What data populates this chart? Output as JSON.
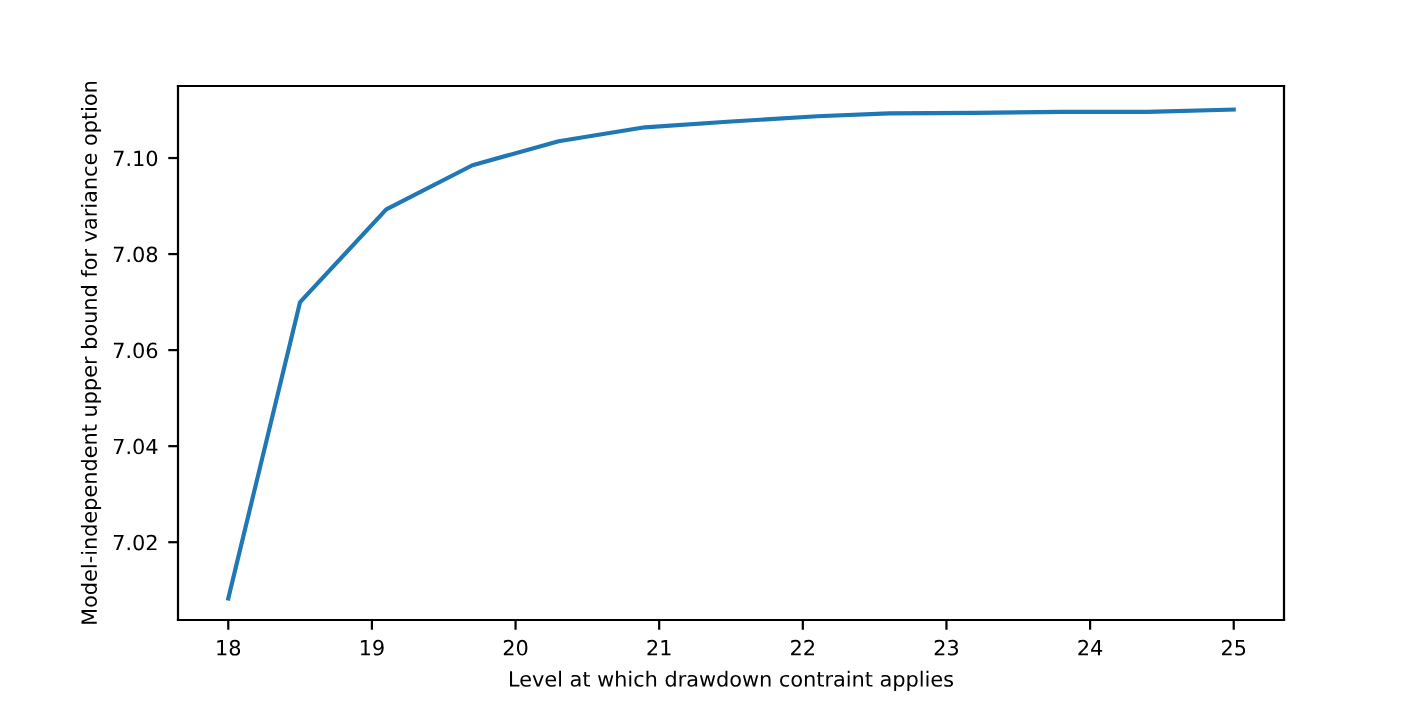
{
  "chart_data": {
    "type": "line",
    "xlabel": "Level at which drawdown contraint applies",
    "ylabel": "Model-independent upper bound for variance option",
    "x": [
      18,
      18.5,
      19.1,
      19.7,
      20.3,
      20.9,
      21.5,
      22.1,
      22.6,
      23.2,
      23.8,
      24.4,
      25
    ],
    "series": [
      {
        "color": "#1f77b4",
        "values": [
          7.0083,
          7.07,
          7.0893,
          7.0985,
          7.1035,
          7.1064,
          7.1076,
          7.1087,
          7.1093,
          7.1094,
          7.1096,
          7.1096,
          7.1101
        ]
      }
    ],
    "xlim": [
      17.65,
      25.35
    ],
    "ylim": [
      7.0038,
      7.115
    ],
    "xticks": [
      18,
      19,
      20,
      21,
      22,
      23,
      24,
      25
    ],
    "yticks": [
      {
        "value": 7.02,
        "label": "7.02"
      },
      {
        "value": 7.04,
        "label": "7.04"
      },
      {
        "value": 7.06,
        "label": "7.06"
      },
      {
        "value": 7.08,
        "label": "7.08"
      },
      {
        "value": 7.1,
        "label": "7.10"
      }
    ],
    "grid": false,
    "legend": false
  }
}
